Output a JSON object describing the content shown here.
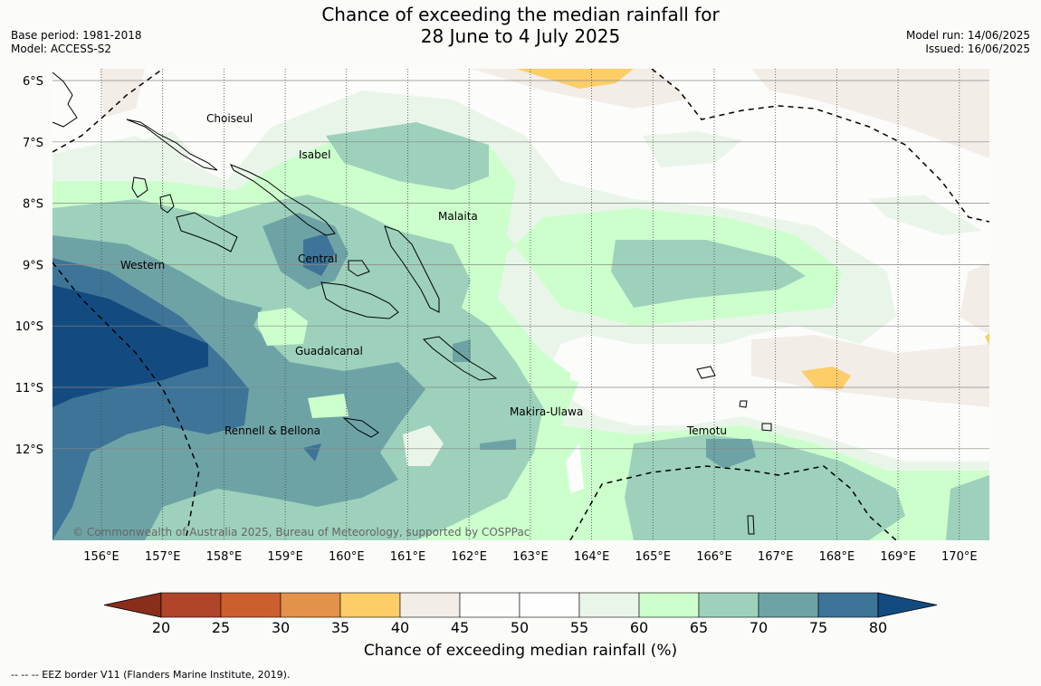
{
  "title": {
    "line1": "Chance of exceeding the median rainfall for",
    "line2": "28 June to 4 July 2025"
  },
  "meta": {
    "base_period": "Base period: 1981-2018",
    "model": "Model: ACCESS-S2",
    "model_run": "Model run: 14/06/2025",
    "issued": "Issued: 16/06/2025"
  },
  "map": {
    "lat_labels": [
      "6°S",
      "7°S",
      "8°S",
      "9°S",
      "10°S",
      "11°S",
      "12°S"
    ],
    "lon_labels": [
      "156°E",
      "157°E",
      "158°E",
      "159°E",
      "160°E",
      "161°E",
      "162°E",
      "163°E",
      "164°E",
      "165°E",
      "166°E",
      "167°E",
      "168°E",
      "169°E",
      "170°E"
    ],
    "regions": [
      "Choiseul",
      "Isabel",
      "Malaita",
      "Western",
      "Central",
      "Guadalcanal",
      "Makira-Ulawa",
      "Rennell & Bellona",
      "Temotu"
    ],
    "copyright": "© Commonwealth of Australia 2025, Bureau of Meteorology, supported by COSPPac"
  },
  "colorbar": {
    "ticks": [
      "20",
      "25",
      "30",
      "35",
      "40",
      "45",
      "50",
      "55",
      "60",
      "65",
      "70",
      "75",
      "80"
    ],
    "colors": [
      "#b0452a",
      "#cc5f30",
      "#e3924a",
      "#fdcd68",
      "#f3ede7",
      "#fcfcfb",
      "#fefefe",
      "#eaf5e9",
      "#ccffcc",
      "#9dd1bb",
      "#6ea3a6",
      "#3d7498"
    ],
    "under_color": "#8a2e1c",
    "over_color": "#134b80",
    "label": "Chance of exceeding median rainfall (%)"
  },
  "footer": "--  --  -- EEZ border V11 (Flanders Marine Institute, 2019)."
}
